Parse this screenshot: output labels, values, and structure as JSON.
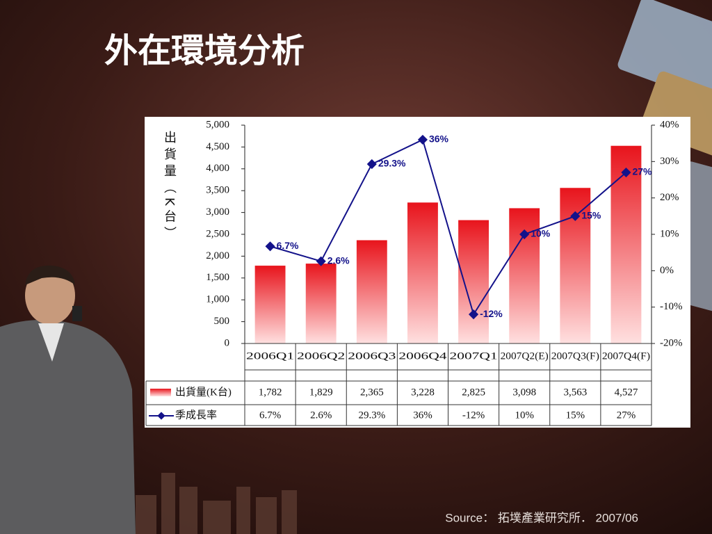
{
  "title": "外在環境分析",
  "source": "Source： 拓墣產業研究所． 2007/06",
  "chart_data": {
    "type": "bar",
    "y_label": "出貨量（K台）",
    "categories": [
      "2006Q1",
      "2006Q2",
      "2006Q3",
      "2006Q4",
      "2007Q1",
      "2007Q2(E)",
      "2007Q3(F)",
      "2007Q4(F)"
    ],
    "series": [
      {
        "name": "出貨量(K台)",
        "type": "bar",
        "color": "#e8141c",
        "values": [
          1782,
          1829,
          2365,
          3228,
          2825,
          3098,
          3563,
          4527
        ],
        "value_labels": [
          "1,782",
          "1,829",
          "2,365",
          "3,228",
          "2,825",
          "3,098",
          "3,563",
          "4,527"
        ]
      },
      {
        "name": "季成長率",
        "type": "line",
        "axis": "y2",
        "color": "#13128a",
        "values": [
          6.7,
          2.6,
          29.3,
          36,
          -12,
          10,
          15,
          27
        ],
        "value_labels": [
          "6.7%",
          "2.6%",
          "29.3%",
          "36%",
          "-12%",
          "10%",
          "15%",
          "27%"
        ]
      }
    ],
    "ylim": [
      0,
      5000
    ],
    "yticks": [
      0,
      500,
      {
        "value": 1000,
        "label": "1,000"
      },
      {
        "value": 1500,
        "label": "1,500"
      },
      {
        "value": 2000,
        "label": "2,000"
      },
      {
        "value": 2500,
        "label": "2,500"
      },
      {
        "value": 3000,
        "label": "3,000"
      },
      {
        "value": 3500,
        "label": "3,500"
      },
      {
        "value": 4000,
        "label": "4,000"
      },
      {
        "value": 4500,
        "label": "4,500"
      },
      {
        "value": 5000,
        "label": "5,000"
      }
    ],
    "y2lim": [
      -20,
      40
    ],
    "y2ticks": [
      {
        "value": -20,
        "label": "-20%"
      },
      {
        "value": -10,
        "label": "-10%"
      },
      {
        "value": 0,
        "label": "0%"
      },
      {
        "value": 10,
        "label": "10%"
      },
      {
        "value": 20,
        "label": "20%"
      },
      {
        "value": 30,
        "label": "30%"
      },
      {
        "value": 40,
        "label": "40%"
      }
    ],
    "grid": false
  }
}
